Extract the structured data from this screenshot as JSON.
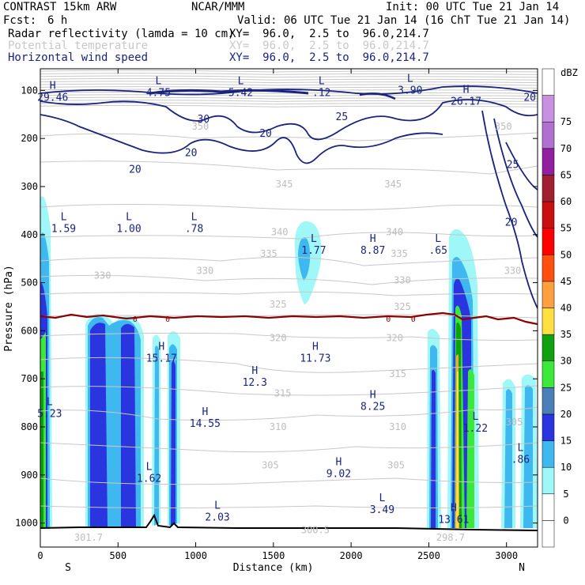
{
  "header": {
    "model": "CONTRAST 15km ARW",
    "center": "NCAR/MMM",
    "init": "Init: 00 UTC Tue 21 Jan 14",
    "fcst_label": "Fcst:",
    "fcst_value": "6 h",
    "valid": "Valid: 06 UTC Tue 21 Jan 14 (16 ChT Tue 21 Jan 14)",
    "fields": [
      {
        "name": "Radar reflectivity (lamda = 10 cm)",
        "xy": "XY=  96.0,  2.5 to  96.0,214.7",
        "color": "#000000"
      },
      {
        "name": "Potential temperature",
        "xy": "XY=  96.0,  2.5 to  96.0,214.7",
        "color": "#c8c8c8"
      },
      {
        "name": "Horizontal wind speed",
        "xy": "XY=  96.0,  2.5 to  96.0,214.7",
        "color": "#1a237e"
      }
    ]
  },
  "chart_data": {
    "type": "cross-section",
    "title": "CONTRAST 15km ARW",
    "xlabel": "Distance (km)",
    "ylabel": "Pressure (hPa)",
    "xlim": [
      0,
      3200
    ],
    "ylim": [
      1050,
      55
    ],
    "x_ticks": [
      0,
      500,
      1000,
      1500,
      2000,
      2500,
      3000
    ],
    "y_ticks": [
      100,
      200,
      300,
      400,
      500,
      600,
      700,
      800,
      900,
      1000
    ],
    "x_end_labels": {
      "left": "S",
      "right": "N"
    },
    "colorbar": {
      "units": "dBZ",
      "levels": [
        0,
        5,
        10,
        15,
        20,
        25,
        30,
        35,
        40,
        45,
        50,
        55,
        60,
        65,
        70,
        75
      ],
      "colors": [
        "#ffffff",
        "#ffffff",
        "#9ff7f7",
        "#3fb8f0",
        "#2a35e0",
        "#4a7fb8",
        "#3ce83c",
        "#10a010",
        "#ffe040",
        "#ffa040",
        "#ff5010",
        "#ff0000",
        "#c81010",
        "#a02030",
        "#9020a0",
        "#b070d0",
        "#c890e0",
        "#ffffff"
      ]
    },
    "theta_labels": [
      {
        "x": 1030,
        "p": 175,
        "text": "350"
      },
      {
        "x": 2980,
        "p": 175,
        "text": "350"
      },
      {
        "x": 1570,
        "p": 295,
        "text": "345"
      },
      {
        "x": 2270,
        "p": 295,
        "text": "345"
      },
      {
        "x": 1540,
        "p": 395,
        "text": "340"
      },
      {
        "x": 2280,
        "p": 395,
        "text": "340"
      },
      {
        "x": 1470,
        "p": 440,
        "text": "335"
      },
      {
        "x": 2310,
        "p": 440,
        "text": "335"
      },
      {
        "x": 400,
        "p": 485,
        "text": "330"
      },
      {
        "x": 1060,
        "p": 475,
        "text": "330"
      },
      {
        "x": 2330,
        "p": 495,
        "text": "330"
      },
      {
        "x": 3040,
        "p": 475,
        "text": "330"
      },
      {
        "x": 1530,
        "p": 545,
        "text": "325"
      },
      {
        "x": 2330,
        "p": 550,
        "text": "325"
      },
      {
        "x": 1530,
        "p": 615,
        "text": "320"
      },
      {
        "x": 2280,
        "p": 615,
        "text": "320"
      },
      {
        "x": 2300,
        "p": 690,
        "text": "315"
      },
      {
        "x": 1560,
        "p": 730,
        "text": "315"
      },
      {
        "x": 1530,
        "p": 800,
        "text": "310"
      },
      {
        "x": 2300,
        "p": 800,
        "text": "310"
      },
      {
        "x": 1480,
        "p": 880,
        "text": "305"
      },
      {
        "x": 2290,
        "p": 880,
        "text": "305"
      },
      {
        "x": 3050,
        "p": 790,
        "text": "305"
      },
      {
        "x": 1770,
        "p": 1015,
        "text": "300.5"
      },
      {
        "x": 2640,
        "p": 1030,
        "text": "298.7"
      },
      {
        "x": 310,
        "p": 1030,
        "text": "301.7"
      }
    ],
    "wind_labels": [
      {
        "x": 1050,
        "p": 160,
        "text": "30"
      },
      {
        "x": 1450,
        "p": 190,
        "text": "20"
      },
      {
        "x": 970,
        "p": 230,
        "text": "20"
      },
      {
        "x": 610,
        "p": 265,
        "text": "20"
      },
      {
        "x": 1940,
        "p": 155,
        "text": "25"
      },
      {
        "x": 3150,
        "p": 115,
        "text": "20"
      },
      {
        "x": 3040,
        "p": 255,
        "text": "25"
      },
      {
        "x": 3030,
        "p": 375,
        "text": "20"
      }
    ],
    "extrema": [
      {
        "x": 80,
        "p": 97,
        "kind": "H",
        "value": "29.46"
      },
      {
        "x": 760,
        "p": 87,
        "kind": "L",
        "value": "4.75"
      },
      {
        "x": 1290,
        "p": 87,
        "kind": "L",
        "value": "5.42"
      },
      {
        "x": 1810,
        "p": 87,
        "kind": "L",
        "value": ".12"
      },
      {
        "x": 2380,
        "p": 82,
        "kind": "L",
        "value": "3.90"
      },
      {
        "x": 2740,
        "p": 105,
        "kind": "H",
        "value": "26.17"
      },
      {
        "x": 150,
        "p": 370,
        "kind": "L",
        "value": "1.59"
      },
      {
        "x": 570,
        "p": 370,
        "kind": "L",
        "value": "1.00"
      },
      {
        "x": 990,
        "p": 370,
        "kind": "L",
        "value": ".78"
      },
      {
        "x": 1760,
        "p": 415,
        "kind": "L",
        "value": "1.77"
      },
      {
        "x": 2140,
        "p": 415,
        "kind": "H",
        "value": "8.87"
      },
      {
        "x": 2560,
        "p": 415,
        "kind": "L",
        "value": ".65"
      },
      {
        "x": 780,
        "p": 640,
        "kind": "H",
        "value": "15.17"
      },
      {
        "x": 1770,
        "p": 640,
        "kind": "H",
        "value": "11.73"
      },
      {
        "x": 1380,
        "p": 690,
        "kind": "H",
        "value": "12.3"
      },
      {
        "x": 60,
        "p": 755,
        "kind": "L",
        "value": "5.23"
      },
      {
        "x": 2140,
        "p": 740,
        "kind": "H",
        "value": "8.25"
      },
      {
        "x": 1060,
        "p": 775,
        "kind": "H",
        "value": "14.55"
      },
      {
        "x": 2800,
        "p": 785,
        "kind": "L",
        "value": "1.22"
      },
      {
        "x": 3090,
        "p": 850,
        "kind": "L",
        "value": ".86"
      },
      {
        "x": 700,
        "p": 890,
        "kind": "L",
        "value": "1.62"
      },
      {
        "x": 1920,
        "p": 880,
        "kind": "H",
        "value": "9.02"
      },
      {
        "x": 1140,
        "p": 970,
        "kind": "L",
        "value": "2.03"
      },
      {
        "x": 2200,
        "p": 955,
        "kind": "L",
        "value": "3.49"
      },
      {
        "x": 2660,
        "p": 975,
        "kind": "H",
        "value": "13.61"
      }
    ],
    "freezing_level_labels": [
      {
        "x": 610,
        "p": 575,
        "text": "0"
      },
      {
        "x": 820,
        "p": 575,
        "text": "0"
      },
      {
        "x": 2240,
        "p": 575,
        "text": "0"
      },
      {
        "x": 2400,
        "p": 575,
        "text": "0"
      }
    ]
  }
}
